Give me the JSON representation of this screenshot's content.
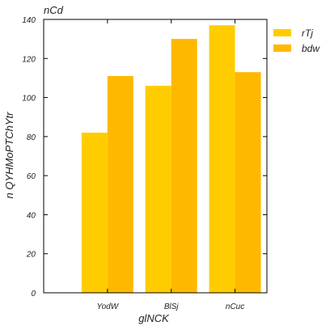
{
  "chart_data": {
    "type": "bar",
    "title": "nCd",
    "xlabel": "glNCK",
    "ylabel": "n QYHMoPTChYtr",
    "categories": [
      "YodW",
      "BlSj",
      "nCuc"
    ],
    "series": [
      {
        "name": "rTj",
        "values": [
          82,
          106,
          137
        ],
        "color": "#FFCC00"
      },
      {
        "name": "bdw",
        "values": [
          111,
          130,
          113
        ],
        "color": "#FFB800"
      }
    ],
    "ylim": [
      0,
      140
    ],
    "yticks": [
      0,
      20,
      40,
      60,
      80,
      100,
      120,
      140
    ],
    "grid": false,
    "legend": "top-right"
  }
}
